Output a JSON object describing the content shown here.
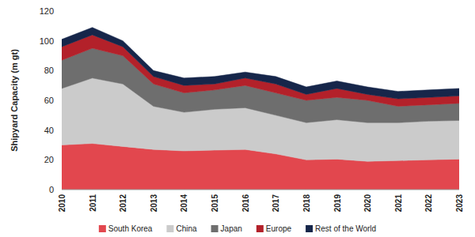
{
  "chart_data": {
    "type": "area",
    "stacked": true,
    "grid": false,
    "legend": "bottom",
    "y_label": "Shipyard Capacity (m gt)",
    "categories": [
      "2010",
      "2011",
      "2012",
      "2013",
      "2014",
      "2015",
      "2016",
      "2017",
      "2018",
      "2019",
      "2020",
      "2021",
      "2022",
      "2023"
    ],
    "ylim": [
      0,
      120
    ],
    "yticks": [
      0,
      20,
      40,
      60,
      80,
      100,
      120
    ],
    "series": [
      {
        "name": "South Korea",
        "color": "#e2474e",
        "values": [
          30,
          31,
          29,
          27,
          26,
          26.5,
          27,
          24,
          20,
          20.5,
          19,
          19.5,
          20,
          20.5
        ]
      },
      {
        "name": "China",
        "color": "#cbcbcb",
        "values": [
          38,
          44,
          42,
          29,
          26,
          27.5,
          28,
          26,
          25,
          26.5,
          26,
          25.5,
          26,
          26
        ]
      },
      {
        "name": "Japan",
        "color": "#6e6e6e",
        "values": [
          19,
          20,
          19,
          15,
          13,
          13,
          15,
          15,
          15,
          15,
          15,
          11,
          11,
          11.5
        ]
      },
      {
        "name": "Europe",
        "color": "#b3212a",
        "values": [
          9,
          9,
          6,
          5,
          5,
          4,
          5,
          6,
          4,
          6,
          4,
          5,
          5,
          5
        ]
      },
      {
        "name": "Rest of the World",
        "color": "#16264a",
        "values": [
          5,
          5,
          4,
          4,
          5,
          5,
          4,
          5,
          5,
          5,
          5,
          5,
          5,
          5
        ]
      }
    ]
  }
}
